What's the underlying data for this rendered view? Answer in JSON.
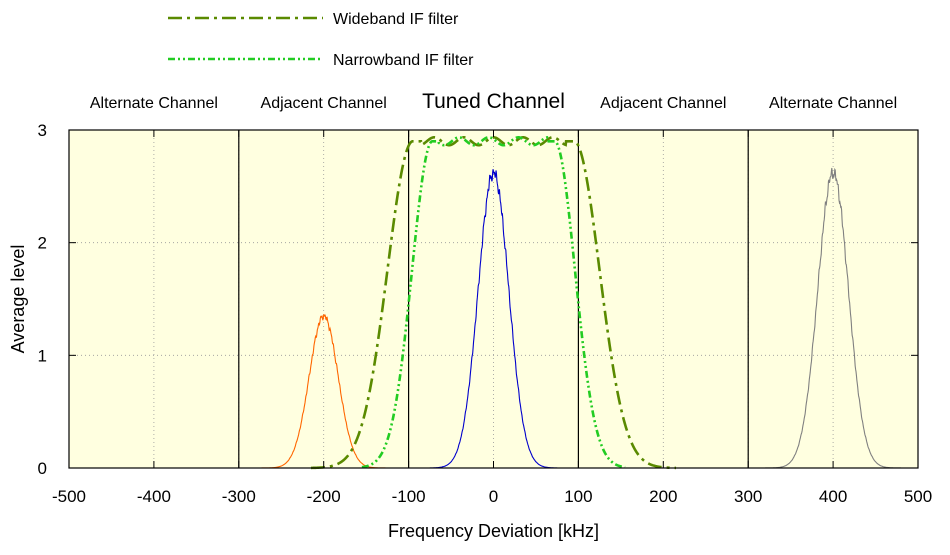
{
  "chart_data": {
    "type": "line",
    "title": "",
    "xlabel": "Frequency Deviation [kHz]",
    "ylabel": "Average level",
    "xlim": [
      -500,
      500
    ],
    "ylim": [
      0,
      3
    ],
    "xticks": [
      -500,
      -400,
      -300,
      -200,
      -100,
      0,
      100,
      200,
      300,
      400,
      500
    ],
    "yticks": [
      0,
      1,
      2,
      3
    ],
    "grid": true,
    "background": "#ffffe0",
    "channel_boundaries": [
      -300,
      -100,
      100,
      300
    ],
    "channel_labels": [
      {
        "label": "Alternate Channel",
        "center": -400
      },
      {
        "label": "Adjacent Channel",
        "center": -200
      },
      {
        "label": "Tuned Channel",
        "center": 0
      },
      {
        "label": "Adjacent Channel",
        "center": 200
      },
      {
        "label": "Alternate Channel",
        "center": 400
      }
    ],
    "legend_position": "top-left (above plot)",
    "legend": [
      {
        "name": "Wideband IF filter",
        "color": "#5a8a00",
        "style": "dash-dot"
      },
      {
        "name": "Narrowband IF filter",
        "color": "#22cc22",
        "style": "dash-dot-dot"
      }
    ],
    "filters": [
      {
        "name": "Wideband IF filter",
        "color": "#5a8a00",
        "center": 0,
        "plateau": 2.9,
        "flat_halfwidth": 95,
        "falloff_width": 50,
        "x_range": [
          -215,
          215
        ]
      },
      {
        "name": "Narrowband IF filter",
        "color": "#22cc22",
        "center": 0,
        "plateau": 2.9,
        "flat_halfwidth": 72,
        "falloff_width": 40,
        "x_range": [
          -155,
          155
        ]
      }
    ],
    "signals": [
      {
        "name": "Adjacent channel signal",
        "color": "#ff6600",
        "center": -200,
        "peak": 1.35,
        "sigma": 17,
        "x_range": [
          -300,
          -100
        ]
      },
      {
        "name": "Tuned channel signal",
        "color": "#0000cc",
        "center": 0,
        "peak": 2.62,
        "sigma": 18,
        "x_range": [
          -75,
          75
        ]
      },
      {
        "name": "Alternate channel signal",
        "color": "#808080",
        "center": 400,
        "peak": 2.62,
        "sigma": 18,
        "x_range": [
          320,
          480
        ]
      }
    ]
  }
}
